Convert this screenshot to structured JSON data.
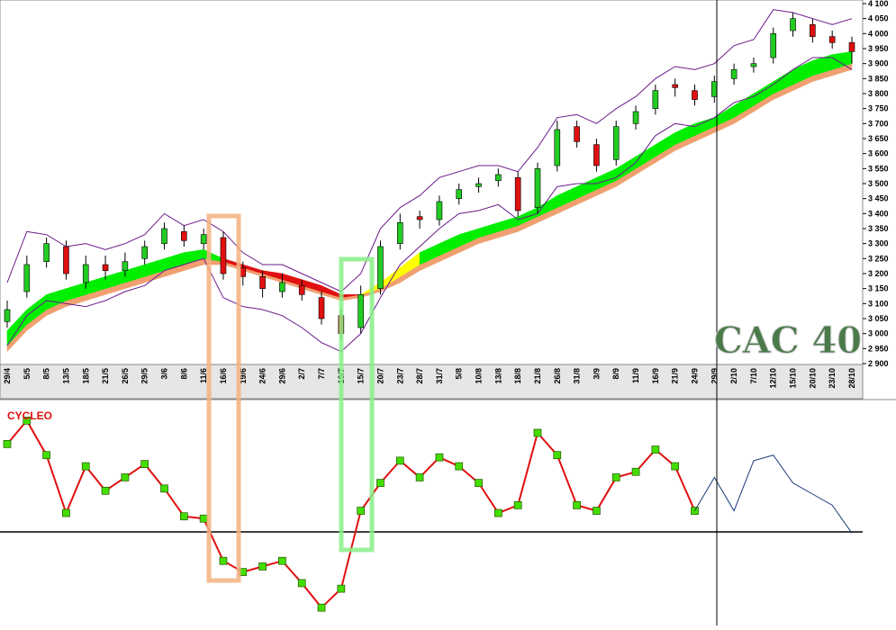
{
  "chart_data": {
    "type": "candlestick",
    "title": "CAC 40",
    "categories": [
      "29/4",
      "5/5",
      "8/5",
      "13/5",
      "18/5",
      "21/5",
      "26/5",
      "29/5",
      "3/6",
      "8/6",
      "11/6",
      "16/6",
      "19/6",
      "24/6",
      "29/6",
      "2/7",
      "7/7",
      "10/7",
      "15/7",
      "20/7",
      "23/7",
      "28/7",
      "31/7",
      "5/8",
      "10/8",
      "13/8",
      "18/8",
      "21/8",
      "26/8",
      "31/8",
      "3/9",
      "8/9",
      "11/9",
      "16/9",
      "21/9",
      "24/9",
      "29/9",
      "2/10",
      "7/10",
      "12/10",
      "15/10",
      "20/10",
      "23/10",
      "28/10"
    ],
    "open": [
      3040,
      3140,
      3240,
      3290,
      3170,
      3230,
      3210,
      3250,
      3300,
      3340,
      3300,
      3320,
      3220,
      3190,
      3140,
      3160,
      3120,
      3060,
      3020,
      3150,
      3300,
      3390,
      3380,
      3450,
      3490,
      3510,
      3520,
      3420,
      3560,
      3690,
      3630,
      3580,
      3700,
      3750,
      3830,
      3810,
      3790,
      3850,
      3890,
      3920,
      4010,
      4030,
      3990,
      3970
    ],
    "high": [
      3110,
      3260,
      3320,
      3310,
      3260,
      3260,
      3270,
      3310,
      3370,
      3360,
      3350,
      3340,
      3240,
      3210,
      3200,
      3180,
      3140,
      3080,
      3160,
      3310,
      3400,
      3410,
      3460,
      3500,
      3520,
      3550,
      3540,
      3570,
      3710,
      3710,
      3650,
      3710,
      3760,
      3830,
      3850,
      3830,
      3860,
      3900,
      3920,
      4020,
      4070,
      4050,
      4010,
      3990
    ],
    "low": [
      3020,
      3120,
      3220,
      3180,
      3150,
      3180,
      3190,
      3230,
      3280,
      3290,
      3280,
      3180,
      3160,
      3120,
      3120,
      3110,
      3030,
      2980,
      3000,
      3130,
      3280,
      3350,
      3360,
      3430,
      3470,
      3490,
      3390,
      3400,
      3540,
      3620,
      3540,
      3560,
      3680,
      3730,
      3790,
      3760,
      3770,
      3830,
      3870,
      3900,
      3990,
      3970,
      3950,
      3900
    ],
    "close": [
      3080,
      3230,
      3300,
      3200,
      3230,
      3210,
      3240,
      3290,
      3350,
      3310,
      3330,
      3200,
      3190,
      3150,
      3170,
      3130,
      3050,
      3000,
      3130,
      3290,
      3370,
      3380,
      3440,
      3480,
      3500,
      3530,
      3410,
      3550,
      3680,
      3640,
      3560,
      3690,
      3740,
      3810,
      3820,
      3780,
      3840,
      3880,
      3900,
      4000,
      4050,
      3990,
      3970,
      3940
    ],
    "up_color": "#22cc22",
    "down_color": "#e01010",
    "envelope_color": "#6a1a8a",
    "upper_envelope": [
      3170,
      3340,
      3330,
      3290,
      3300,
      3280,
      3300,
      3330,
      3400,
      3360,
      3380,
      3340,
      3270,
      3230,
      3230,
      3200,
      3170,
      3140,
      3200,
      3350,
      3420,
      3460,
      3520,
      3540,
      3560,
      3560,
      3540,
      3620,
      3720,
      3730,
      3700,
      3750,
      3790,
      3850,
      3890,
      3880,
      3900,
      3960,
      3980,
      4080,
      4070,
      4050,
      4030,
      4050
    ],
    "lower_envelope": [
      2960,
      3060,
      3110,
      3100,
      3090,
      3110,
      3140,
      3160,
      3210,
      3230,
      3250,
      3120,
      3090,
      3080,
      3060,
      3020,
      2970,
      2940,
      3000,
      3120,
      3230,
      3290,
      3350,
      3400,
      3410,
      3430,
      3380,
      3400,
      3490,
      3500,
      3500,
      3520,
      3570,
      3660,
      3700,
      3690,
      3720,
      3770,
      3790,
      3830,
      3880,
      3920,
      3920,
      3880
    ],
    "band_top": [
      3010,
      3080,
      3130,
      3150,
      3170,
      3190,
      3210,
      3230,
      3250,
      3270,
      3280,
      3250,
      3230,
      3210,
      3200,
      3180,
      3160,
      3130,
      3130,
      3170,
      3220,
      3270,
      3300,
      3330,
      3350,
      3370,
      3390,
      3420,
      3460,
      3490,
      3520,
      3550,
      3590,
      3630,
      3670,
      3700,
      3720,
      3760,
      3800,
      3840,
      3880,
      3910,
      3930,
      3940
    ],
    "band_mid": [
      2960,
      3030,
      3080,
      3110,
      3130,
      3150,
      3170,
      3190,
      3210,
      3230,
      3250,
      3240,
      3220,
      3200,
      3180,
      3160,
      3140,
      3120,
      3130,
      3150,
      3190,
      3230,
      3260,
      3290,
      3320,
      3340,
      3360,
      3390,
      3420,
      3450,
      3480,
      3510,
      3550,
      3590,
      3630,
      3660,
      3690,
      3720,
      3760,
      3800,
      3830,
      3860,
      3880,
      3900
    ],
    "band_bottom": [
      2940,
      3010,
      3060,
      3090,
      3110,
      3130,
      3150,
      3170,
      3190,
      3210,
      3230,
      3230,
      3210,
      3190,
      3170,
      3150,
      3130,
      3110,
      3120,
      3140,
      3170,
      3210,
      3240,
      3270,
      3300,
      3320,
      3340,
      3370,
      3400,
      3430,
      3460,
      3490,
      3530,
      3570,
      3610,
      3640,
      3670,
      3700,
      3740,
      3780,
      3810,
      3840,
      3860,
      3880
    ],
    "band_colors": [
      "#00ee00",
      "#00ee00",
      "#00ee00",
      "#00ee00",
      "#00ee00",
      "#00ee00",
      "#00ee00",
      "#00ee00",
      "#00ee00",
      "#00ee00",
      "#00ee00",
      "#e01010",
      "#e01010",
      "#e01010",
      "#e01010",
      "#e01010",
      "#e01010",
      "#e01010",
      "#ffff00",
      "#ffff00",
      "#ffff00",
      "#00ee00",
      "#00ee00",
      "#00ee00",
      "#00ee00",
      "#00ee00",
      "#00ee00",
      "#00ee00",
      "#00ee00",
      "#00ee00",
      "#00ee00",
      "#00ee00",
      "#00ee00",
      "#00ee00",
      "#00ee00",
      "#00ee00",
      "#00ee00",
      "#00ee00",
      "#00ee00",
      "#00ee00",
      "#00ee00",
      "#00ee00",
      "#00ee00"
    ],
    "band_low_color": "#f0a070",
    "ylim": [
      2900,
      4100
    ],
    "yticks": [
      {
        "value": 4100,
        "label": "4 100"
      },
      {
        "value": 4050,
        "label": "4 050"
      },
      {
        "value": 4000,
        "label": "4 000"
      },
      {
        "value": 3950,
        "label": "3 950"
      },
      {
        "value": 3900,
        "label": "3 900"
      },
      {
        "value": 3850,
        "label": "3 850"
      },
      {
        "value": 3800,
        "label": "3 800"
      },
      {
        "value": 3750,
        "label": "3 750"
      },
      {
        "value": 3700,
        "label": "3 700"
      },
      {
        "value": 3650,
        "label": "3 650"
      },
      {
        "value": 3600,
        "label": "3 600"
      },
      {
        "value": 3550,
        "label": "3 550"
      },
      {
        "value": 3500,
        "label": "3 500"
      },
      {
        "value": 3450,
        "label": "3 450"
      },
      {
        "value": 3400,
        "label": "3 400"
      },
      {
        "value": 3350,
        "label": "3 350"
      },
      {
        "value": 3300,
        "label": "3 300"
      },
      {
        "value": 3250,
        "label": "3 250"
      },
      {
        "value": 3200,
        "label": "3 200"
      },
      {
        "value": 3150,
        "label": "3 150"
      },
      {
        "value": 3100,
        "label": "3 100"
      },
      {
        "value": 3050,
        "label": "3 050"
      },
      {
        "value": 3000,
        "label": "3 000"
      },
      {
        "value": 2950,
        "label": "2 950"
      },
      {
        "value": 2900,
        "label": "2 900"
      }
    ],
    "oscillator": {
      "title": "CYCLEO",
      "series": [
        {
          "color": "#e01010",
          "marker_color": "#44dd00",
          "values": [
            79,
            100,
            69,
            17,
            59,
            37,
            49,
            61,
            39,
            14,
            12,
            -26,
            -36,
            -31,
            -26,
            -46,
            -68,
            -51,
            19,
            44,
            64,
            49,
            67,
            59,
            44,
            17,
            24,
            89,
            69,
            24,
            19,
            49,
            54,
            74,
            59,
            19,
            null,
            null,
            null,
            null,
            null,
            null,
            null,
            null
          ]
        },
        {
          "color": "#1a3a7a",
          "values": [
            null,
            null,
            null,
            null,
            null,
            null,
            null,
            null,
            null,
            null,
            null,
            null,
            null,
            null,
            null,
            null,
            null,
            null,
            null,
            null,
            null,
            null,
            null,
            null,
            null,
            null,
            null,
            null,
            null,
            null,
            null,
            null,
            null,
            null,
            null,
            19,
            49,
            19,
            64,
            69,
            44,
            34,
            24,
            -1
          ]
        }
      ],
      "ylim": [
        -80,
        110
      ]
    }
  }
}
